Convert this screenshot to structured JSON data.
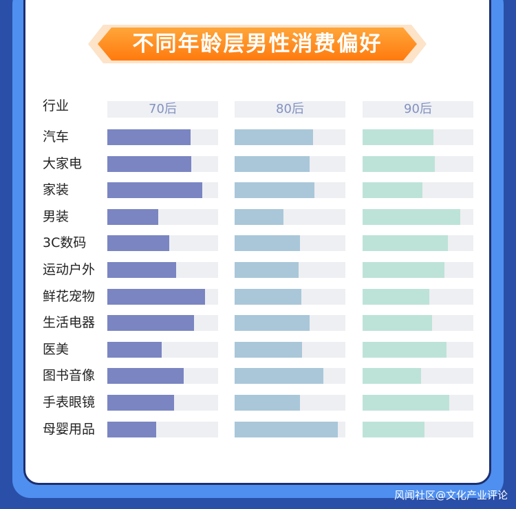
{
  "chart_data": {
    "type": "bar",
    "title": "不同年龄层男性消费偏好",
    "category_header": "行业",
    "categories": [
      "汽车",
      "大家电",
      "家装",
      "男装",
      "3C数码",
      "运动户外",
      "鲜花宠物",
      "生活电器",
      "医美",
      "图书音像",
      "手表眼镜",
      "母婴用品"
    ],
    "series": [
      {
        "name": "70后",
        "color": "#7a85c2",
        "values": [
          75,
          76,
          86,
          46,
          56,
          62,
          88,
          78,
          49,
          69,
          60,
          44
        ]
      },
      {
        "name": "80后",
        "color": "#a9c7d9",
        "values": [
          71,
          68,
          72,
          44,
          59,
          58,
          60,
          68,
          61,
          80,
          59,
          93
        ]
      },
      {
        "name": "90后",
        "color": "#bde3d8",
        "values": [
          64,
          65,
          54,
          88,
          77,
          74,
          60,
          63,
          76,
          53,
          78,
          56
        ]
      }
    ],
    "ylim": [
      0,
      100
    ],
    "track_color": "#eeeff2"
  },
  "watermark": "风闻社区@文化产业评论"
}
